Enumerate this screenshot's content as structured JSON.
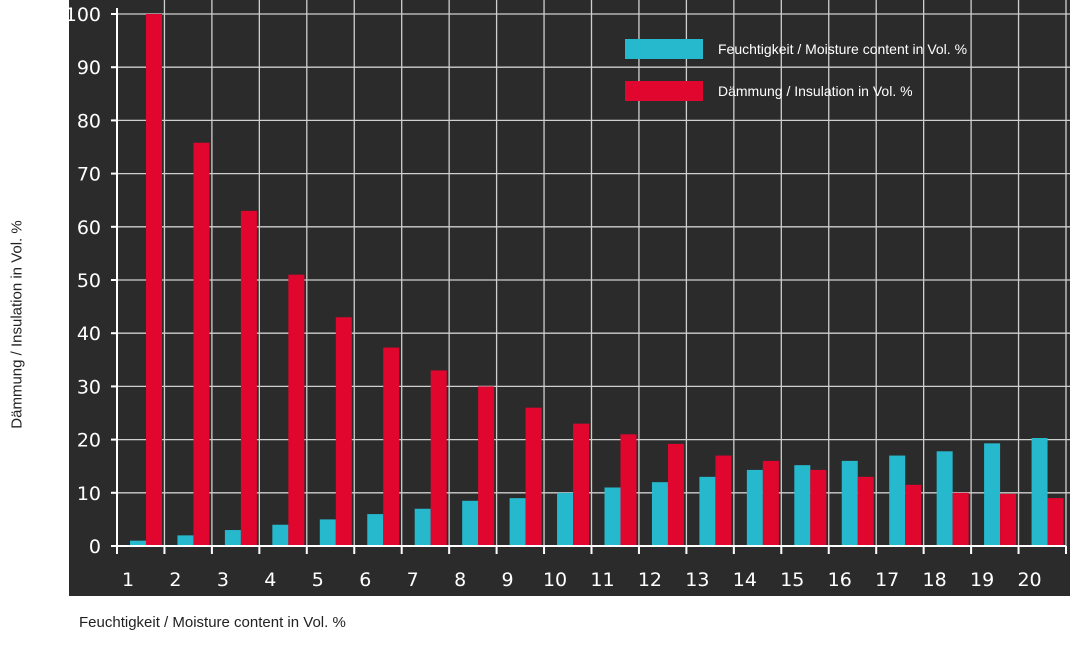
{
  "chart_data": {
    "type": "bar",
    "xlabel": "Feuchtigkeit / Moisture content in Vol. %",
    "ylabel": "Dämmung / Insulation in Vol. %",
    "ylim": [
      0,
      100
    ],
    "y_ticks": [
      0,
      10,
      20,
      30,
      40,
      50,
      60,
      70,
      80,
      90,
      100
    ],
    "categories": [
      "1",
      "2",
      "3",
      "4",
      "5",
      "6",
      "7",
      "8",
      "9",
      "10",
      "11",
      "12",
      "13",
      "14",
      "15",
      "16",
      "17",
      "18",
      "19",
      "20"
    ],
    "grid": true,
    "legend_position": "top-right",
    "background_color": "#2b2b2b",
    "series": [
      {
        "name": "Feuchtigkeit / Moisture content in Vol. %",
        "color": "#26b8cc",
        "values": [
          1,
          2,
          3,
          4,
          5,
          6,
          7,
          8.5,
          9,
          10,
          11,
          12,
          13,
          14.3,
          15.2,
          16,
          17,
          17.8,
          19.3,
          20.3
        ]
      },
      {
        "name": "Dämmung / Insulation in Vol. %",
        "color": "#e1062d",
        "values": [
          100,
          75.8,
          63,
          51,
          43,
          37.3,
          33,
          30,
          26,
          23,
          21,
          19.2,
          17,
          16,
          14.3,
          13,
          11.5,
          10,
          9.8,
          9
        ]
      }
    ]
  }
}
